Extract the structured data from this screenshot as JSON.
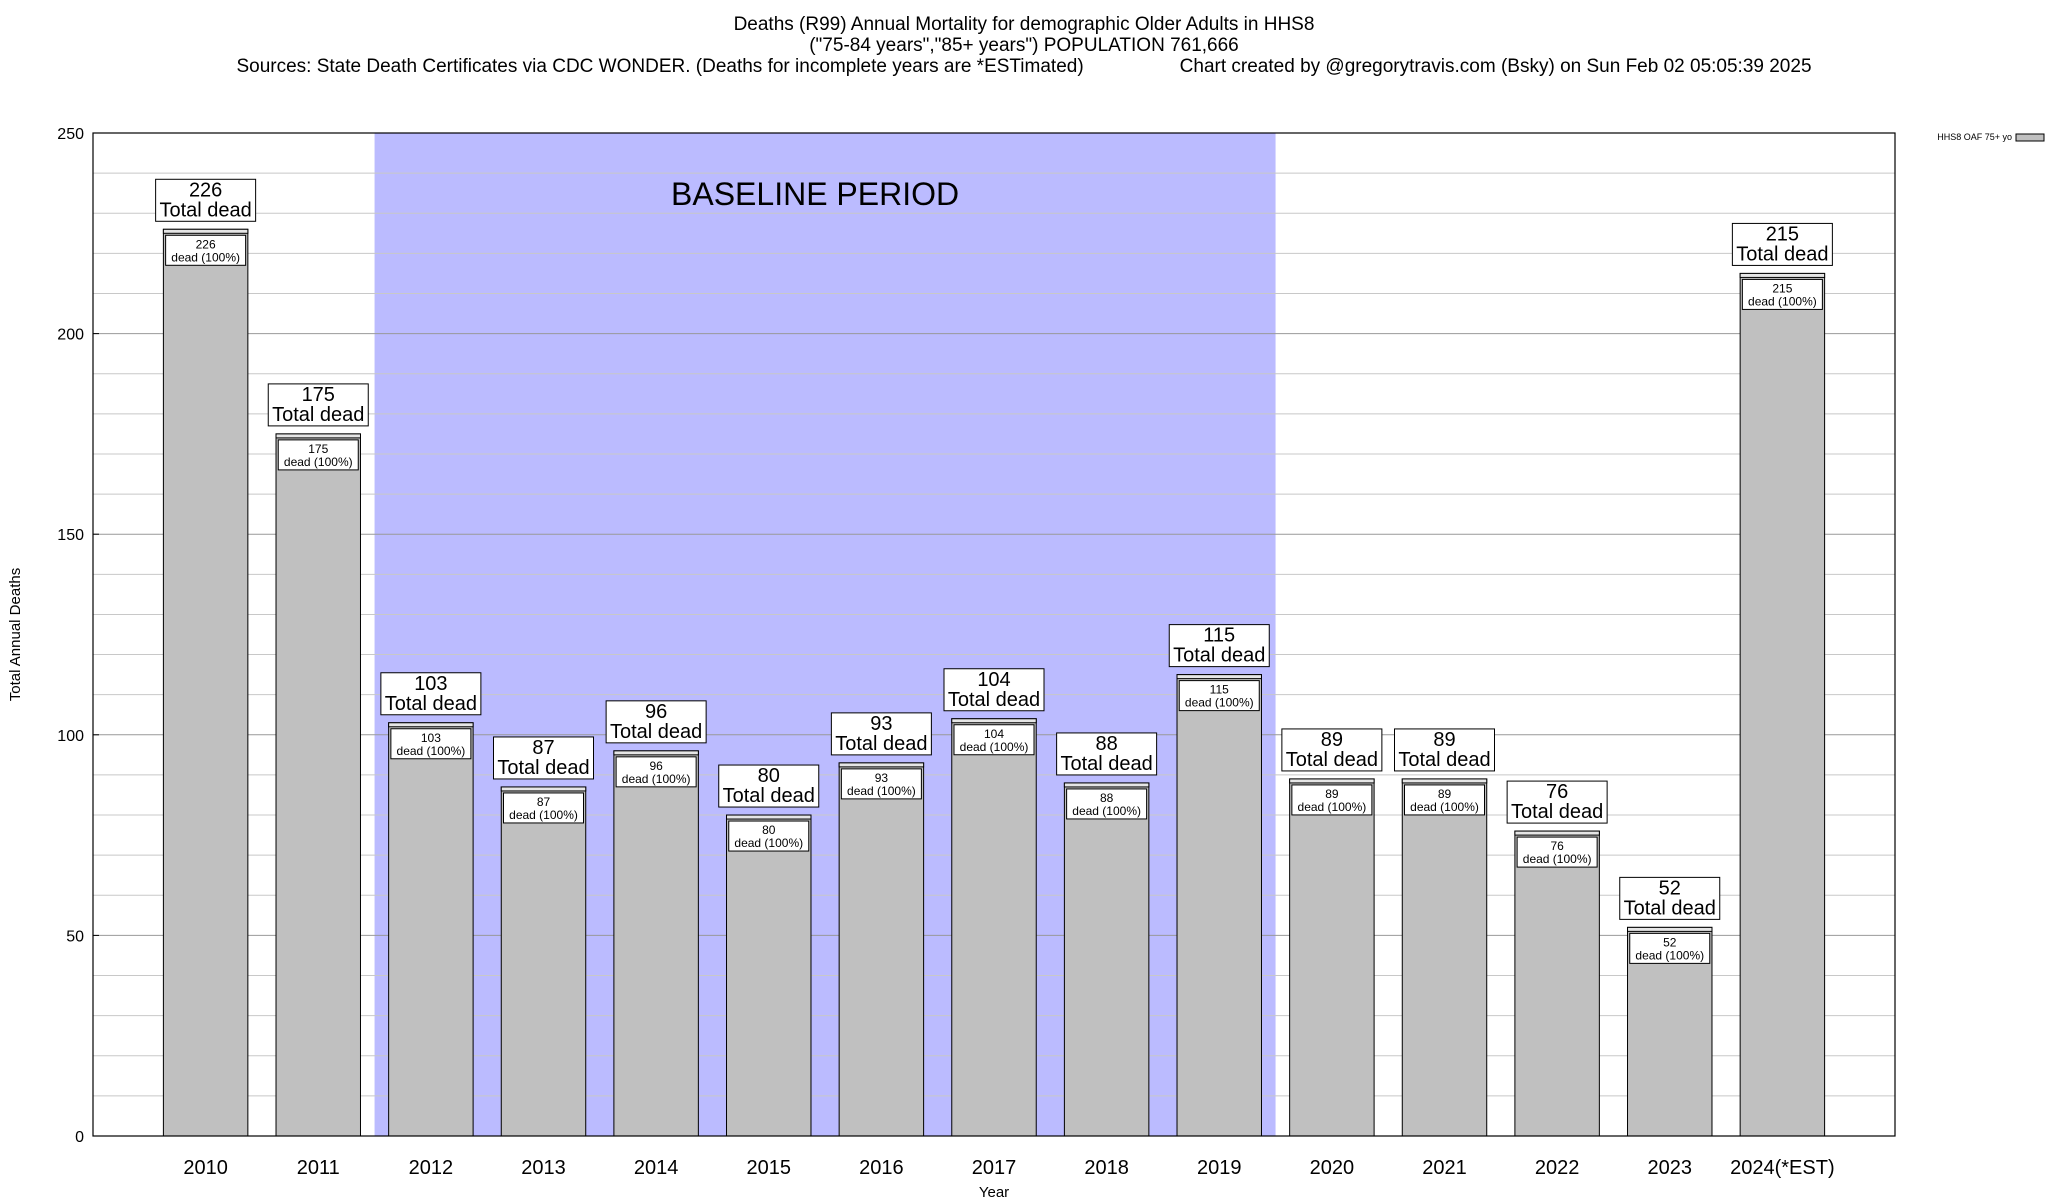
{
  "header": {
    "title": "Deaths (R99) Annual Mortality for demographic Older Adults in HHS8",
    "subtitle": "(\"75-84 years\",\"85+ years\") POPULATION 761,666",
    "sources": "Sources: State Death Certificates via CDC WONDER. (Deaths for incomplete years are *ESTimated)",
    "credit": "Chart created by @gregorytravis.com (Bsky) on Sun Feb 02 05:05:39 2025"
  },
  "colors": {
    "bar_fill": "#c0c0c0",
    "baseline_band": "#bbbbff",
    "grid": "#c8c8c8",
    "axis": "#000000"
  },
  "chart_data": {
    "type": "bar",
    "title": "Deaths (R99) Annual Mortality for demographic Older Adults in HHS8",
    "xlabel": "Year",
    "ylabel": "Total Annual Deaths",
    "ylim": [
      0,
      250
    ],
    "yticks": [
      0,
      50,
      100,
      150,
      200,
      250
    ],
    "grid": true,
    "legend": {
      "position": "top-right",
      "entries": [
        "HHS8 OAF 75+ yo"
      ]
    },
    "categories": [
      "2010",
      "2011",
      "2012",
      "2013",
      "2014",
      "2015",
      "2016",
      "2017",
      "2018",
      "2019",
      "2020",
      "2021",
      "2022",
      "2023",
      "2024(*EST)"
    ],
    "series": [
      {
        "name": "HHS8 OAF 75+ yo",
        "values": [
          226,
          175,
          103,
          87,
          96,
          80,
          93,
          104,
          88,
          115,
          89,
          89,
          76,
          52,
          215
        ]
      }
    ],
    "total_label": "Total dead",
    "inner_label_suffix": "dead (100%)",
    "annotations": [
      {
        "text": "BASELINE PERIOD",
        "type": "shaded_region",
        "from": "2012",
        "to": "2019"
      }
    ]
  }
}
